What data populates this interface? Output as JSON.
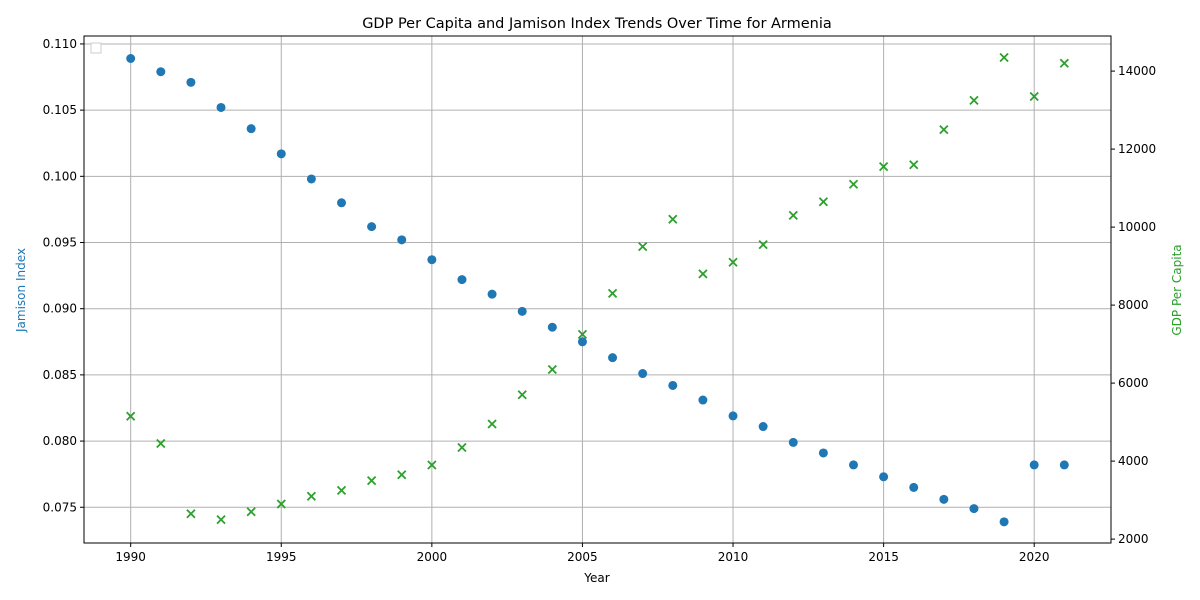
{
  "chart_data": {
    "type": "scatter",
    "title": "GDP Per Capita and Jamison Index Trends Over Time for Armenia",
    "xlabel": "Year",
    "ylabel_left": "Jamison Index",
    "ylabel_right": "GDP Per Capita",
    "x_ticks": [
      "1990",
      "1995",
      "2000",
      "2005",
      "2010",
      "2015",
      "2020"
    ],
    "y_left_ticks": [
      "0.075",
      "0.080",
      "0.085",
      "0.090",
      "0.095",
      "0.100",
      "0.105",
      "0.110"
    ],
    "y_right_ticks": [
      "2000",
      "4000",
      "6000",
      "8000",
      "10000",
      "12000",
      "14000"
    ],
    "xlim": [
      1988.45,
      2022.55
    ],
    "ylim_left": [
      0.0723,
      0.1106
    ],
    "ylim_right": [
      1900,
      14900
    ],
    "grid": true,
    "legend": "top-left (empty)",
    "colors": {
      "jamison": "#1f77b4",
      "gdp": "#2ca02c",
      "grid": "#b0b0b0"
    },
    "x": [
      1990,
      1991,
      1992,
      1993,
      1994,
      1995,
      1996,
      1997,
      1998,
      1999,
      2000,
      2001,
      2002,
      2003,
      2004,
      2005,
      2006,
      2007,
      2008,
      2009,
      2010,
      2011,
      2012,
      2013,
      2014,
      2015,
      2016,
      2017,
      2018,
      2019,
      2020,
      2021
    ],
    "series": [
      {
        "key": "jamison",
        "axis": "left",
        "marker": "circle",
        "values": [
          0.1089,
          0.1079,
          0.1071,
          0.1052,
          0.1036,
          0.1017,
          0.0998,
          0.098,
          0.0962,
          0.0952,
          0.0937,
          0.0922,
          0.0911,
          0.0898,
          0.0886,
          0.0875,
          0.0863,
          0.0851,
          0.0842,
          0.0831,
          0.0819,
          0.0811,
          0.0799,
          0.0791,
          0.0782,
          0.0773,
          0.0765,
          0.0756,
          0.0749,
          0.0739,
          0.0782,
          0.0782
        ]
      },
      {
        "key": "gdp",
        "axis": "right",
        "marker": "x",
        "values": [
          5150,
          4450,
          2650,
          2500,
          2700,
          2900,
          3100,
          3250,
          3500,
          3650,
          3900,
          4350,
          4950,
          5700,
          6350,
          7250,
          8300,
          9500,
          10200,
          8800,
          9100,
          9550,
          10300,
          10650,
          11100,
          11550,
          11600,
          12500,
          13250,
          14350,
          13350,
          14200
        ]
      }
    ]
  }
}
